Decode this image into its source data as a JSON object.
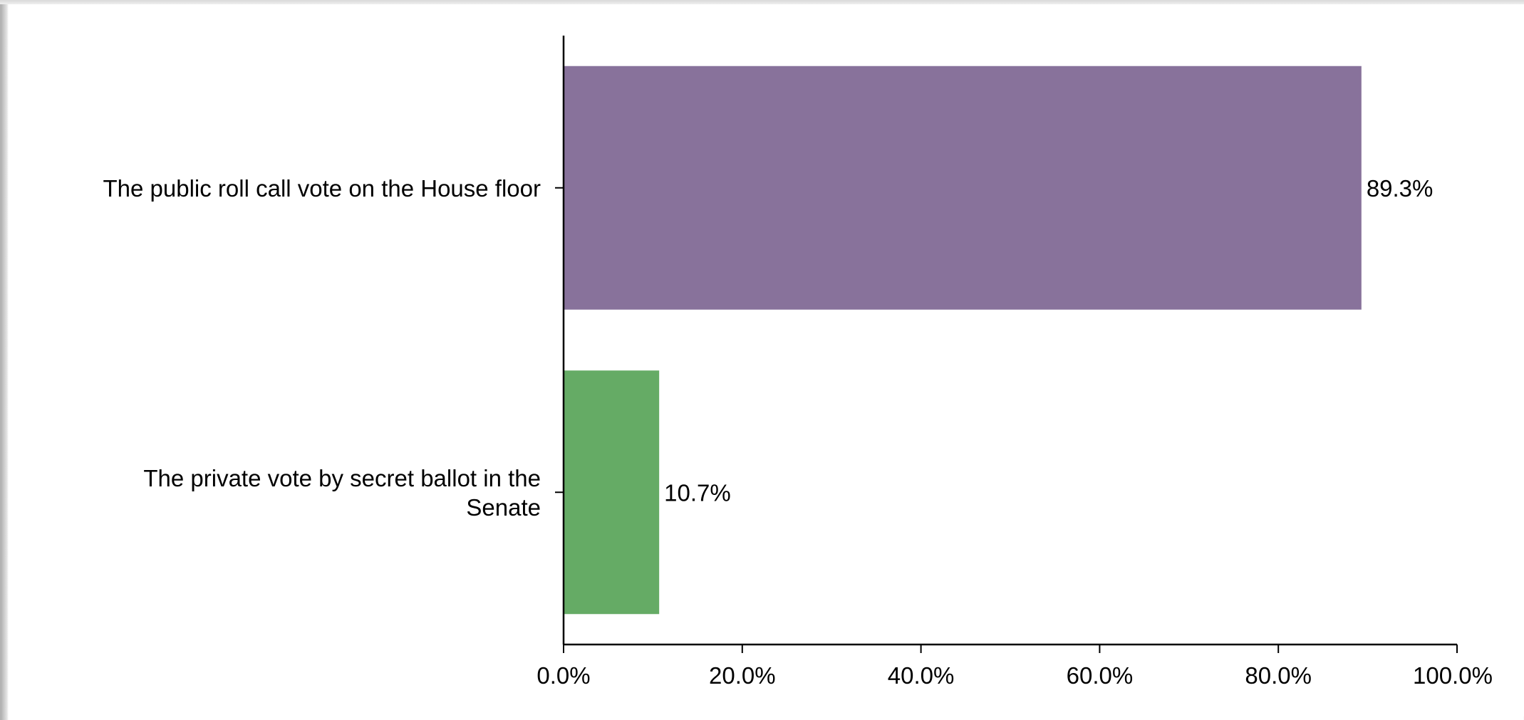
{
  "chart_data": {
    "type": "bar",
    "orientation": "horizontal",
    "categories": [
      "The public roll call vote on the House floor",
      "The private vote by secret ballot in the Senate"
    ],
    "category_label_lines": [
      [
        "The public roll call vote on the House floor"
      ],
      [
        "The private vote by secret ballot in the",
        "Senate"
      ]
    ],
    "values": [
      89.3,
      10.7
    ],
    "data_labels": [
      "89.3%",
      "10.7%"
    ],
    "colors": [
      "#88729b",
      "#65ab65"
    ],
    "xlim": [
      0,
      100
    ],
    "x_ticks": [
      0,
      20,
      40,
      60,
      80,
      100
    ],
    "x_tick_labels": [
      "0.0%",
      "20.0%",
      "40.0%",
      "60.0%",
      "80.0%",
      "100.0%"
    ],
    "grid": false,
    "legend": false,
    "title": "",
    "xlabel": "",
    "ylabel": ""
  }
}
